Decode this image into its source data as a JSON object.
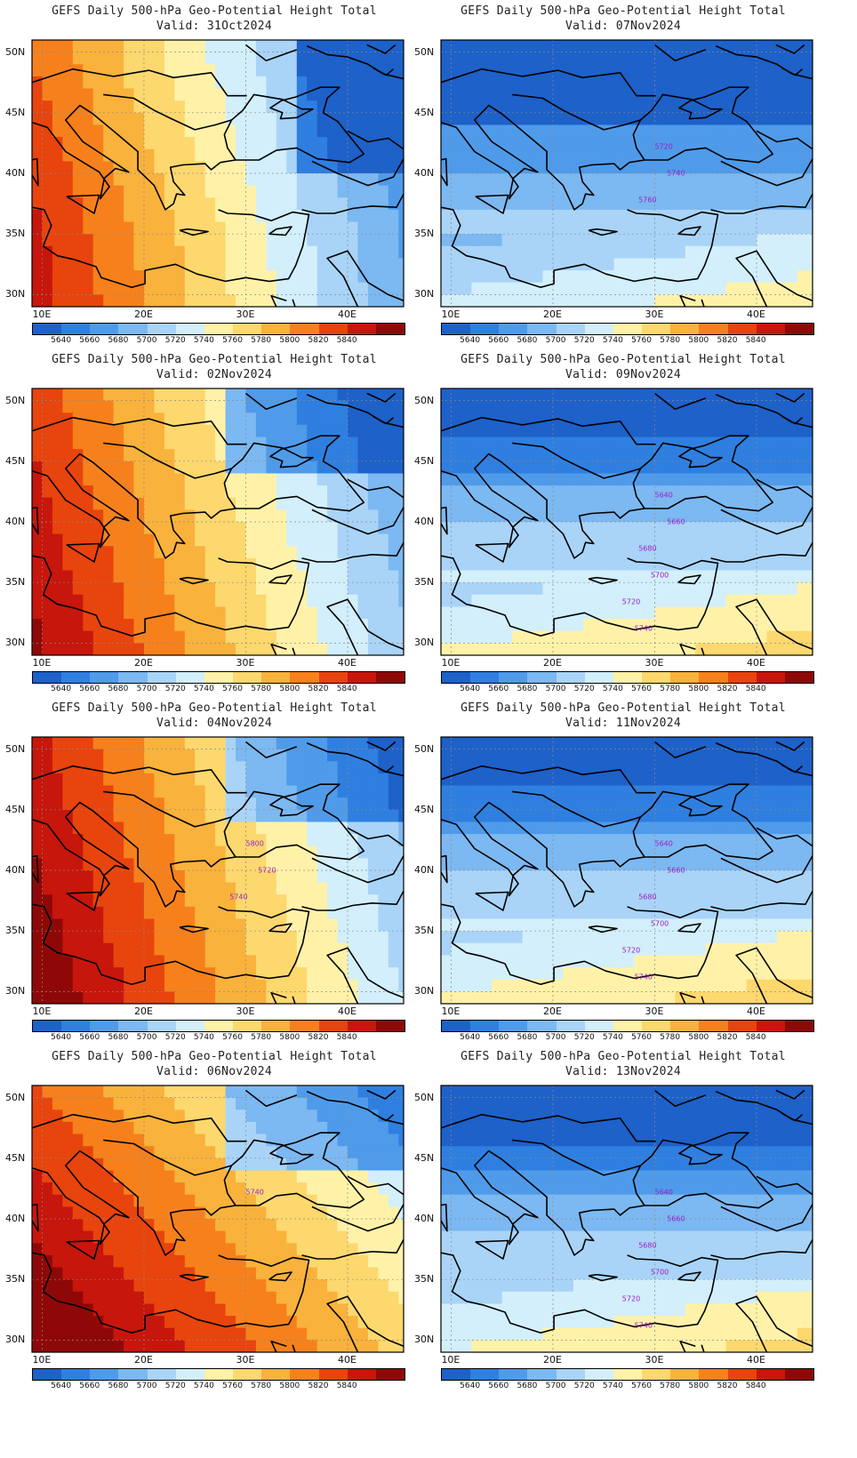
{
  "colors": {
    "palette": [
      "#1d61c9",
      "#2f7fe0",
      "#4f9bea",
      "#7cb8f1",
      "#a9d4f7",
      "#d2effb",
      "#fff2a8",
      "#fcd86e",
      "#f9b23c",
      "#f6811c",
      "#e8440d",
      "#c7160c",
      "#8f0808"
    ],
    "contour": "#9b1fc6",
    "coast": "#000000"
  },
  "common": {
    "lat_ticks": [
      "50N",
      "45N",
      "40N",
      "35N",
      "30N"
    ],
    "lon_ticks": [
      "10E",
      "20E",
      "30E",
      "40E"
    ],
    "colorbar_labels": [
      "5640",
      "5660",
      "5680",
      "5700",
      "5720",
      "5740",
      "5760",
      "5780",
      "5800",
      "5820",
      "5840"
    ]
  },
  "panels": [
    {
      "title": "GEFS Daily 500-hPa Geo-Potential Height Total",
      "valid": "Valid: 31Oct2024",
      "trough": [
        50,
        24
      ],
      "grad": "nw-warm",
      "contour_labels": []
    },
    {
      "title": "GEFS Daily 500-hPa Geo-Potential Height Total",
      "valid": "Valid: 07Nov2024",
      "trough": [
        42,
        30
      ],
      "grad": "s-warm",
      "contour_labels": [
        "5720",
        "5740",
        "5760"
      ]
    },
    {
      "title": "GEFS Daily 500-hPa Geo-Potential Height Total",
      "valid": "Valid: 02Nov2024",
      "trough": [
        50,
        28
      ],
      "grad": "w-warm",
      "contour_labels": []
    },
    {
      "title": "GEFS Daily 500-hPa Geo-Potential Height Total",
      "valid": "Valid: 09Nov2024",
      "trough": [
        45,
        30
      ],
      "grad": "s-warm",
      "contour_labels": [
        "5640",
        "5660",
        "5680",
        "5700",
        "5720",
        "5740"
      ]
    },
    {
      "title": "GEFS Daily 500-hPa Geo-Potential Height Total",
      "valid": "Valid: 04Nov2024",
      "trough": [
        48,
        32
      ],
      "grad": "w-warm",
      "contour_labels": [
        "5800",
        "5720",
        "5740"
      ]
    },
    {
      "title": "GEFS Daily 500-hPa Geo-Potential Height Total",
      "valid": "Valid: 11Nov2024",
      "trough": [
        45,
        28
      ],
      "grad": "s-warm",
      "contour_labels": [
        "5640",
        "5660",
        "5680",
        "5700",
        "5720",
        "5740"
      ]
    },
    {
      "title": "GEFS Daily 500-hPa Geo-Potential Height Total",
      "valid": "Valid: 06Nov2024",
      "trough": [
        48,
        34
      ],
      "grad": "sw-warm",
      "contour_labels": [
        "5740"
      ]
    },
    {
      "title": "GEFS Daily 500-hPa Geo-Potential Height Total",
      "valid": "Valid: 13Nov2024",
      "trough": [
        44,
        26
      ],
      "grad": "s-warm",
      "contour_labels": [
        "5640",
        "5660",
        "5680",
        "5700",
        "5720",
        "5740"
      ]
    }
  ]
}
